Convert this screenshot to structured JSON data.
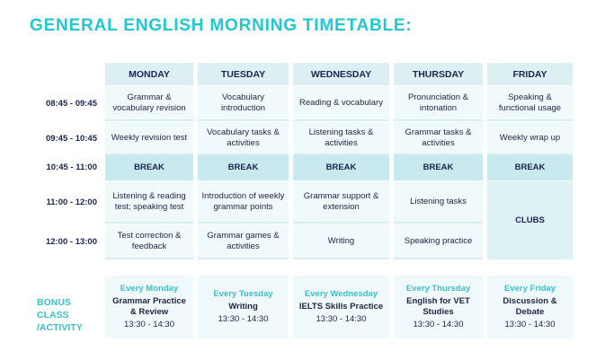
{
  "title": "GENERAL ENGLISH MORNING TIMETABLE:",
  "days": [
    "MONDAY",
    "TUESDAY",
    "WEDNESDAY",
    "THURSDAY",
    "FRIDAY"
  ],
  "times": [
    "08:45 - 09:45",
    "09:45 - 10:45",
    "10:45 - 11:00",
    "11:00 - 12:00",
    "12:00 - 13:00"
  ],
  "rows": [
    [
      "Grammar & vocabulary revision",
      "Vocabulary introduction",
      "Reading & vocabulary",
      "Pronunciation & intonation",
      "Speaking & functional usage"
    ],
    [
      "Weekly revision test",
      "Vocabulary tasks & activities",
      "Listening tasks & activities",
      "Grammar tasks & activities",
      "Weekly wrap up"
    ],
    [
      "BREAK",
      "BREAK",
      "BREAK",
      "BREAK",
      "BREAK"
    ],
    [
      "Listening & reading test; speaking test",
      "Introduction of weekly grammar points",
      "Grammar support & extension",
      "Listening tasks",
      "CLUBS"
    ],
    [
      "Test correction & feedback",
      "Grammar games & activities",
      "Writing",
      "Speaking practice"
    ]
  ],
  "bonus_label": "BONUS CLASS /ACTIVITY",
  "bonus": [
    {
      "day": "Every Monday",
      "activity": "Grammar Practice & Review",
      "time": "13:30 - 14:30"
    },
    {
      "day": "Every Tuesday",
      "activity": "Writing",
      "time": "13:30 - 14:30"
    },
    {
      "day": "Every Wednesday",
      "activity": "IELTS Skills Practice",
      "time": "13:30 - 14:30"
    },
    {
      "day": "Every Thursday",
      "activity": "English for VET Studies",
      "time": "13:30 - 14:30"
    },
    {
      "day": "Every Friday",
      "activity": "Discussion & Debate",
      "time": "13:30 - 14:30"
    }
  ],
  "colors": {
    "accent": "#22c8d0",
    "header": "#dcf0f4",
    "break": "#c8eaef",
    "cell": "#f0f9fb"
  }
}
